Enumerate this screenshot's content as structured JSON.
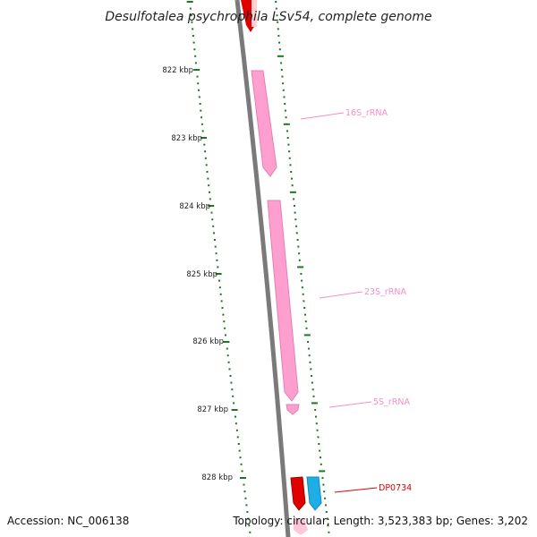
{
  "title": "Desulfotalea psychrophila LSv54, complete genome",
  "footer": {
    "accession": "Accession: NC_006138",
    "summary": "Topology: circular; Length: 3,523,383 bp; Genes: 3,202"
  },
  "ticks": [
    "822 kbp",
    "823 kbp",
    "824 kbp",
    "825 kbp",
    "826 kbp",
    "827 kbp",
    "828 kbp"
  ],
  "features": [
    {
      "label": "16S_rRNA",
      "color": "#f48fc4"
    },
    {
      "label": "23S_rRNA",
      "color": "#f48fc4"
    },
    {
      "label": "5S_rRNA",
      "color": "#f48fc4"
    },
    {
      "label": "DP0734",
      "color": "#e00000"
    }
  ],
  "colors": {
    "backbone": "#7a7a7a",
    "gc_dots": "#1a7a1a",
    "rrna": "#ff9fcf",
    "gene": "#e00000",
    "gene_alt": "#1eaee6"
  }
}
